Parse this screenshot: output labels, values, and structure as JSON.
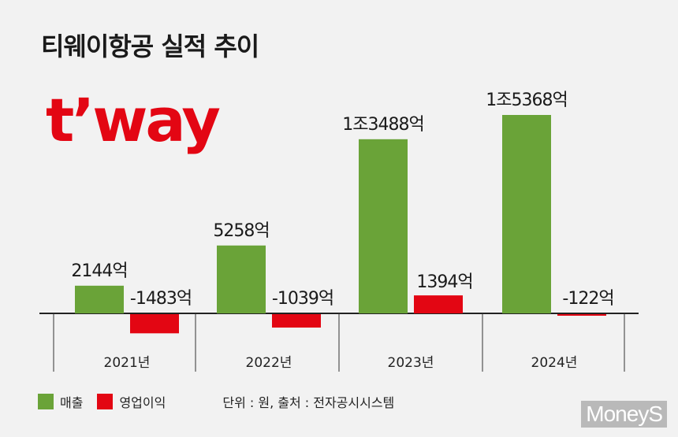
{
  "title": "티웨이항공 실적 추이",
  "logo": {
    "text": "t’way"
  },
  "chart_data": {
    "type": "bar",
    "categories": [
      "2021년",
      "2022년",
      "2023년",
      "2024년"
    ],
    "series": [
      {
        "name": "매출",
        "color": "#6aa338",
        "values": [
          2144,
          5258,
          13488,
          15368
        ],
        "labels": [
          "2144억",
          "5258억",
          "1조3488억",
          "1조5368억"
        ]
      },
      {
        "name": "영업이익",
        "color": "#e30613",
        "values": [
          -1483,
          -1039,
          1394,
          -122
        ],
        "labels": [
          "-1483억",
          "-1039억",
          "1394억",
          "-122억"
        ]
      }
    ],
    "unit": "억 원"
  },
  "legend": {
    "revenue_label": "매출",
    "profit_label": "영업이익",
    "revenue_color": "#6aa338",
    "profit_color": "#e30613"
  },
  "source": "단위 : 원, 출처 : 전자공시시스템",
  "watermark": "MoneyS"
}
